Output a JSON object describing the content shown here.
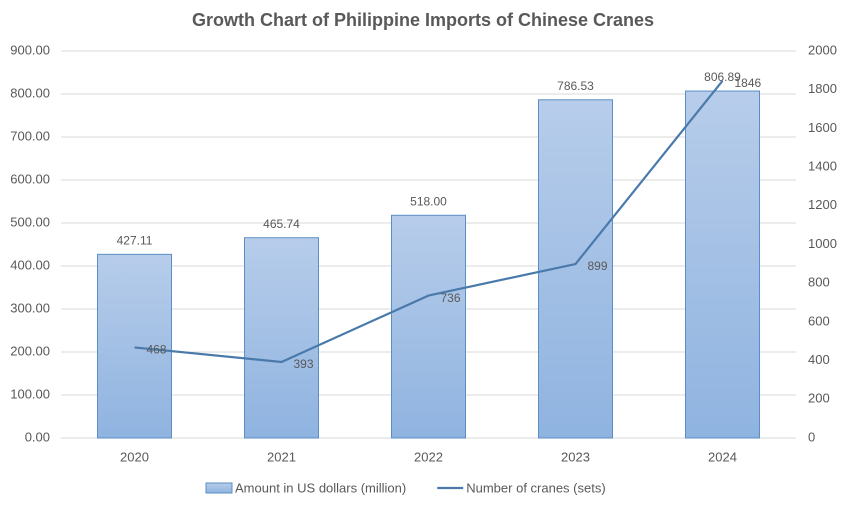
{
  "chart_data": {
    "type": "bar+line",
    "title": "Growth Chart of Philippine Imports of Chinese Cranes",
    "categories": [
      "2020",
      "2021",
      "2022",
      "2023",
      "2024"
    ],
    "series": [
      {
        "name": "Amount in US dollars (million)",
        "color": "#9dbde6",
        "type": "bar",
        "values": [
          427.11,
          465.74,
          518,
          786.53,
          806.89
        ],
        "value_labels": [
          "427.11",
          "465.74",
          "518.00",
          "786.53",
          "806.89"
        ]
      },
      {
        "name": "Number of cranes (sets)",
        "color": "#4a7aab",
        "type": "line",
        "axis": "y2",
        "values": [
          468,
          393,
          736,
          899,
          1846
        ]
      }
    ],
    "ylim": [
      0,
      900
    ],
    "yticks": [
      {
        "value": 0,
        "label": "0.00"
      },
      {
        "value": 100,
        "label": "100.00"
      },
      {
        "value": 200,
        "label": "200.00"
      },
      {
        "value": 300,
        "label": "300.00"
      },
      {
        "value": 400,
        "label": "400.00"
      },
      {
        "value": 500,
        "label": "500.00"
      },
      {
        "value": 600,
        "label": "600.00"
      },
      {
        "value": 700,
        "label": "700.00"
      },
      {
        "value": 800,
        "label": "800.00"
      },
      {
        "value": 900,
        "label": "900.00"
      }
    ],
    "y2lim": [
      0,
      2000
    ],
    "y2ticks": [
      0,
      200,
      400,
      600,
      800,
      1000,
      1200,
      1400,
      1600,
      1800,
      2000
    ],
    "grid": true,
    "legend": "bottom"
  }
}
